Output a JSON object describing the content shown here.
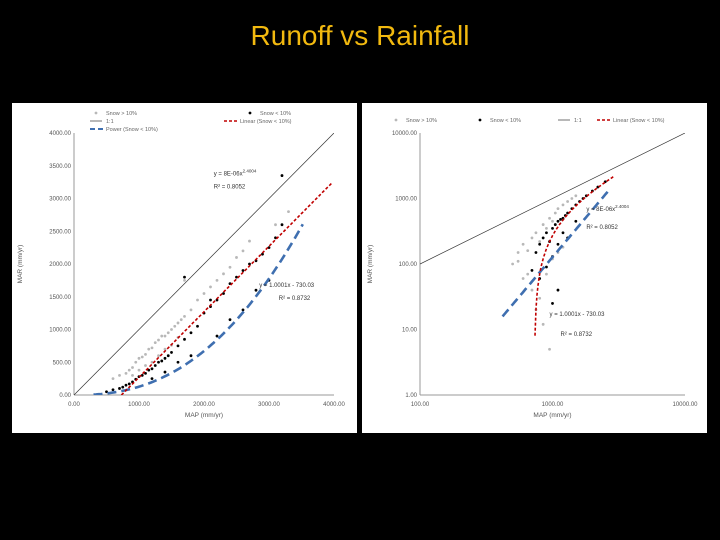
{
  "slide": {
    "title": "Runoff vs Rainfall"
  },
  "colors": {
    "background": "#000000",
    "title": "#f2b90f",
    "snow_gt": "#b8b8b8",
    "snow_lt": "#000000",
    "one_to_one": "#333333",
    "power_fit": "#3f6fb0",
    "linear_fit": "#c00000"
  },
  "chart_data": [
    {
      "type": "scatter",
      "xlabel": "MAP (mm/yr)",
      "ylabel": "MAR (mm/yr)",
      "xlim": [
        0,
        4000
      ],
      "ylim": [
        0,
        4000
      ],
      "x_scale": "linear",
      "y_scale": "linear",
      "xticks": [
        0,
        1000,
        2000,
        3000,
        4000
      ],
      "yticks": [
        0,
        500,
        1000,
        1500,
        2000,
        2500,
        3000,
        3500,
        4000
      ],
      "xtick_labels": [
        "0.00",
        "1000.00",
        "2000.00",
        "3000.00",
        "4000.00"
      ],
      "ytick_labels": [
        "0.00",
        "500.00",
        "1000.00",
        "1500.00",
        "2000.00",
        "2500.00",
        "3000.00",
        "3500.00",
        "4000.00"
      ],
      "legend": [
        "Snow > 10%",
        "Snow < 10%",
        "1:1",
        "Power (Snow < 10%)",
        "Linear (Snow < 10%)"
      ],
      "legend_position": "top",
      "grid": false,
      "annotations": [
        {
          "text": "y = 8E-06x",
          "sup": "2.4004",
          "near_x": 2150,
          "near_y": 3350
        },
        {
          "text": "R² = 0.8052",
          "near_x": 2150,
          "near_y": 3150
        },
        {
          "text": "y = 1.0001x - 730.03",
          "near_x": 2850,
          "near_y": 1650
        },
        {
          "text": "R² = 0.8732",
          "near_x": 3150,
          "near_y": 1450
        }
      ],
      "series": [
        {
          "name": "Snow > 10%",
          "kind": "points",
          "x": [
            600,
            700,
            800,
            850,
            900,
            950,
            1000,
            1050,
            1100,
            1150,
            1200,
            1250,
            1300,
            1350,
            1400,
            1450,
            1500,
            1550,
            1600,
            1650,
            1700,
            1800,
            1900,
            2000,
            2100,
            2200,
            2300,
            2400,
            2500,
            2600,
            2700,
            3100,
            3300,
            1200,
            1300,
            1400,
            1500,
            1600,
            900,
            1000,
            1100,
            1700
          ],
          "y": [
            250,
            300,
            330,
            380,
            420,
            500,
            560,
            580,
            620,
            700,
            720,
            800,
            840,
            900,
            900,
            950,
            1000,
            1050,
            1100,
            1150,
            1200,
            1300,
            1450,
            1550,
            1650,
            1750,
            1850,
            1950,
            2100,
            2200,
            2350,
            2600,
            2800,
            500,
            600,
            700,
            760,
            880,
            300,
            380,
            450,
            1750
          ]
        },
        {
          "name": "Snow < 10%",
          "kind": "points",
          "x": [
            500,
            600,
            700,
            750,
            800,
            850,
            900,
            950,
            1000,
            1050,
            1100,
            1150,
            1200,
            1250,
            1300,
            1350,
            1400,
            1450,
            1500,
            1600,
            1700,
            1800,
            1900,
            2000,
            2100,
            2200,
            2300,
            2400,
            2500,
            2600,
            2700,
            2800,
            2900,
            3000,
            3100,
            3200,
            1200,
            1400,
            1600,
            1800,
            2200,
            2600,
            3000,
            2100,
            2400,
            2800,
            3200,
            1700
          ],
          "y": [
            50,
            80,
            100,
            120,
            150,
            170,
            200,
            240,
            280,
            300,
            330,
            380,
            400,
            450,
            500,
            520,
            560,
            600,
            650,
            750,
            850,
            950,
            1050,
            1250,
            1350,
            1450,
            1550,
            1700,
            1800,
            1900,
            2000,
            2050,
            2150,
            2250,
            2400,
            2600,
            250,
            350,
            500,
            600,
            900,
            1300,
            1750,
            1450,
            1150,
            1600,
            3350,
            1800
          ]
        },
        {
          "name": "1:1",
          "kind": "line",
          "x": [
            0,
            4000
          ],
          "y": [
            0,
            4000
          ]
        },
        {
          "name": "Power (Snow < 10%)",
          "kind": "power_fit",
          "coef": 8e-06,
          "exponent": 2.4004,
          "x_range": [
            300,
            3520
          ]
        },
        {
          "name": "Linear (Snow < 10%)",
          "kind": "linear_fit",
          "slope": 1.0001,
          "intercept": -730.03,
          "x_range": [
            730,
            3980
          ]
        }
      ]
    },
    {
      "type": "scatter",
      "xlabel": "MAP (mm/yr)",
      "ylabel": "MAR (mm/yr)",
      "xlim": [
        100,
        10000
      ],
      "ylim": [
        1,
        10000
      ],
      "x_scale": "log",
      "y_scale": "log",
      "xticks": [
        100,
        1000,
        10000
      ],
      "yticks": [
        1,
        10,
        100,
        1000,
        10000
      ],
      "xtick_labels": [
        "100.00",
        "1000.00",
        "10000.00"
      ],
      "ytick_labels": [
        "1.00",
        "10.00",
        "100.00",
        "1000.00",
        "10000.00"
      ],
      "legend": [
        "Snow > 10%",
        "Snow < 10%",
        "1:1",
        "Linear (Snow < 10%)"
      ],
      "legend_position": "top",
      "grid": false,
      "annotations": [
        {
          "text": "y = 8E-06x",
          "sup": "2.4004",
          "near_x": 1800,
          "near_y": 640
        },
        {
          "text": "R² = 0.8052",
          "near_x": 1800,
          "near_y": 340
        },
        {
          "text": "y = 1.0001x - 730.03",
          "near_x": 950,
          "near_y": 16
        },
        {
          "text": "R² = 0.8732",
          "near_x": 1150,
          "near_y": 8
        }
      ],
      "series": [
        {
          "name": "Snow > 10%",
          "kind": "points",
          "x": [
            500,
            550,
            600,
            650,
            700,
            750,
            800,
            850,
            900,
            950,
            1000,
            1050,
            1100,
            1200,
            1300,
            1400,
            1500,
            600,
            700,
            800,
            900,
            1000,
            1100,
            1200,
            750,
            850,
            950,
            550,
            650
          ],
          "y": [
            100,
            150,
            200,
            160,
            250,
            300,
            220,
            400,
            350,
            500,
            450,
            600,
            700,
            800,
            900,
            1000,
            1100,
            60,
            40,
            30,
            70,
            120,
            150,
            180,
            20,
            12,
            5,
            110,
            70
          ]
        },
        {
          "name": "Snow < 10%",
          "kind": "points",
          "x": [
            700,
            750,
            800,
            850,
            900,
            950,
            1000,
            1050,
            1100,
            1150,
            1200,
            1250,
            1300,
            1400,
            1500,
            1600,
            1700,
            1800,
            2000,
            2200,
            2500,
            800,
            900,
            1000,
            1100,
            1200,
            1300,
            1500,
            1000,
            1100
          ],
          "y": [
            80,
            150,
            200,
            250,
            300,
            220,
            350,
            400,
            450,
            480,
            500,
            550,
            600,
            700,
            800,
            900,
            1000,
            1100,
            1300,
            1500,
            1800,
            60,
            90,
            130,
            200,
            300,
            250,
            450,
            25,
            40
          ]
        },
        {
          "name": "1:1",
          "kind": "line",
          "x": [
            100,
            10000
          ],
          "y": [
            100,
            10000
          ]
        },
        {
          "name": "Power (Snow < 10%)",
          "kind": "power_fit",
          "coef": 8e-06,
          "exponent": 2.4004,
          "x_range": [
            420,
            2700
          ]
        },
        {
          "name": "Linear (Snow < 10%)",
          "kind": "linear_fit",
          "slope": 1.0001,
          "intercept": -730.03,
          "x_range": [
            738,
            2900
          ]
        }
      ]
    }
  ]
}
